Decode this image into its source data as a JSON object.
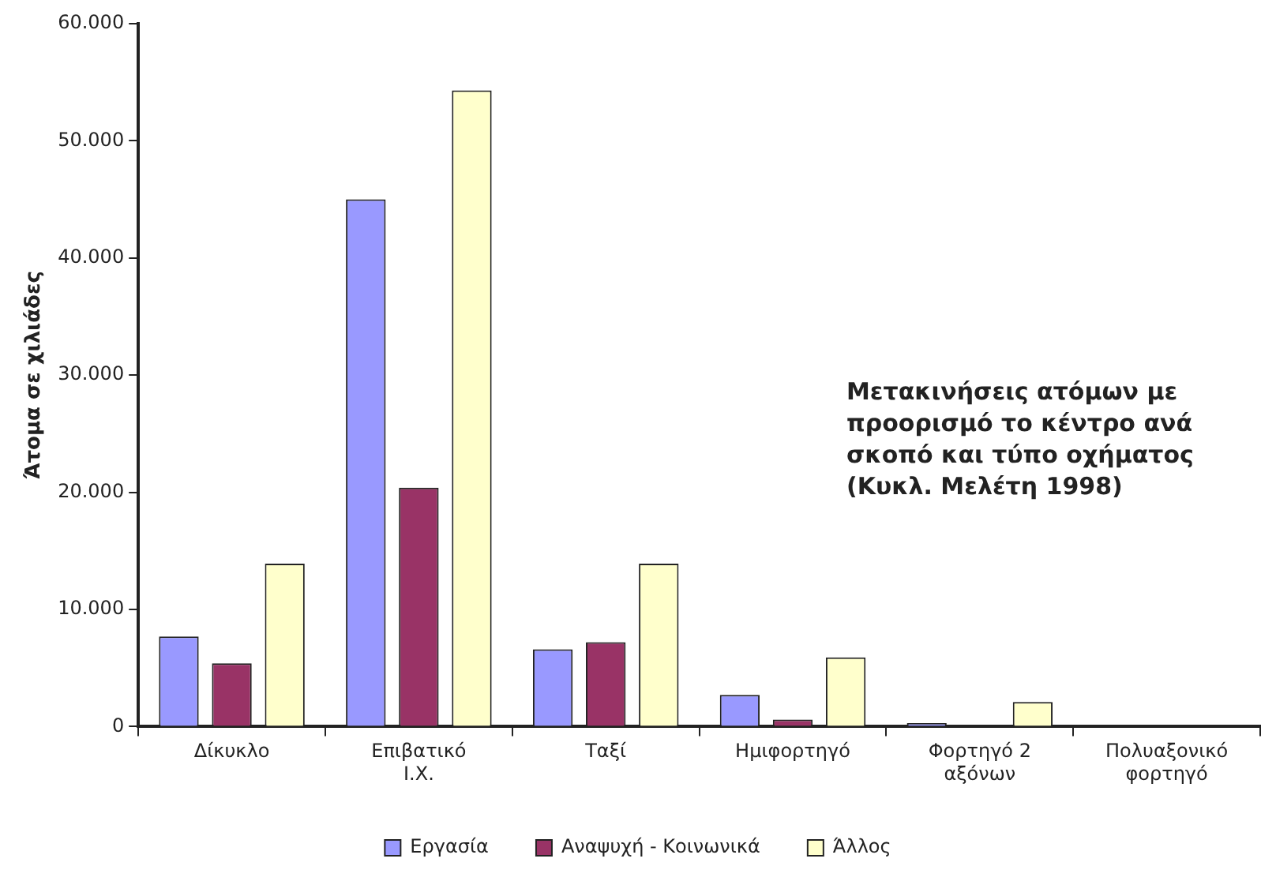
{
  "chart_data": {
    "type": "bar",
    "ylabel": "Άτομα σε χιλιάδες",
    "categories": [
      "Δίκυκλο",
      "Επιβατικό Ι.Χ.",
      "Ταξί",
      "Ημιφορτηγό",
      "Φορτηγό 2 αξόνων",
      "Πολυαξονικό φορτηγό"
    ],
    "series": [
      {
        "name": "Εργασία",
        "color": "#9999ff",
        "values": [
          7700,
          45000,
          6600,
          2700,
          300,
          0
        ]
      },
      {
        "name": "Αναψυχή - Κοινωνικά",
        "color": "#993366",
        "values": [
          5400,
          20400,
          7200,
          600,
          0,
          0
        ]
      },
      {
        "name": "Άλλος",
        "color": "#ffffcc",
        "values": [
          13900,
          54300,
          13900,
          5900,
          2100,
          0
        ]
      }
    ],
    "ylim": [
      0,
      60000
    ],
    "yticks": [
      {
        "value": 0,
        "label": "0"
      },
      {
        "value": 10000,
        "label": "10.000"
      },
      {
        "value": 20000,
        "label": "20.000"
      },
      {
        "value": 30000,
        "label": "30.000"
      },
      {
        "value": 40000,
        "label": "40.000"
      },
      {
        "value": 50000,
        "label": "50.000"
      },
      {
        "value": 60000,
        "label": "60.000"
      }
    ],
    "annotations": [
      "Μετακινήσεις ατόμων με προορισμό το κέντρο ανά σκοπό και τύπο οχήματος (Κυκλ. Μελέτη 1998)"
    ],
    "grid": false,
    "legend": "bottom"
  }
}
